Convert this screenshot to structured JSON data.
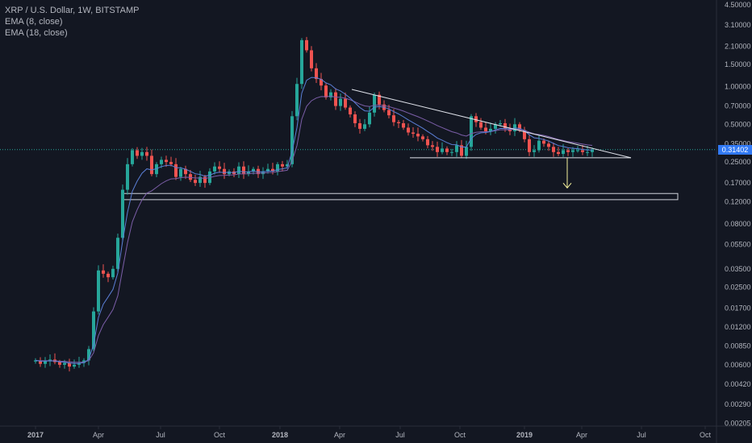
{
  "legend": {
    "title": "XRP / U.S. Dollar, 1W, BITSTAMP",
    "ema_fast": "EMA (8, close)",
    "ema_slow": "EMA (18, close)"
  },
  "last_price_label": "0.31402",
  "colors": {
    "background": "#131722",
    "up": "#26a69a",
    "down": "#ef5350",
    "ema_fast": "#5b7fd6",
    "ema_slow": "#7b5ea8",
    "price_line": "#26a69a",
    "axis_text": "#b2b5be",
    "arrow": "#f5f19c",
    "price_tag": "#3179f5"
  },
  "chart_data": {
    "type": "candlestick",
    "y_scale": "log",
    "ylim": [
      0.002,
      4.5
    ],
    "y_ticks": [
      "4.50000",
      "3.10000",
      "2.10000",
      "1.50000",
      "1.00000",
      "0.70000",
      "0.50000",
      "0.35000",
      "0.25000",
      "0.17000",
      "0.12000",
      "0.08000",
      "0.05500",
      "0.03500",
      "0.02500",
      "0.01700",
      "0.01200",
      "0.00850",
      "0.00600",
      "0.00420",
      "0.00290",
      "0.00205"
    ],
    "x_ticks": [
      "2017",
      "Apr",
      "Jul",
      "Oct",
      "2018",
      "Apr",
      "Jul",
      "Oct",
      "2019",
      "Apr",
      "Jul",
      "Oct"
    ],
    "last_price": 0.31402,
    "closes": [
      0.0065,
      0.0061,
      0.0064,
      0.0066,
      0.0063,
      0.006,
      0.0062,
      0.0058,
      0.006,
      0.0062,
      0.0065,
      0.008,
      0.016,
      0.034,
      0.032,
      0.03,
      0.035,
      0.062,
      0.15,
      0.24,
      0.31,
      0.28,
      0.3,
      0.28,
      0.2,
      0.24,
      0.26,
      0.25,
      0.24,
      0.19,
      0.22,
      0.2,
      0.18,
      0.17,
      0.19,
      0.17,
      0.21,
      0.23,
      0.22,
      0.2,
      0.21,
      0.2,
      0.23,
      0.2,
      0.21,
      0.22,
      0.2,
      0.21,
      0.22,
      0.21,
      0.24,
      0.23,
      0.24,
      0.58,
      1.05,
      2.35,
      1.95,
      1.4,
      1.15,
      1.02,
      0.82,
      0.9,
      0.7,
      0.8,
      0.68,
      0.6,
      0.51,
      0.46,
      0.5,
      0.62,
      0.86,
      0.72,
      0.65,
      0.59,
      0.52,
      0.51,
      0.47,
      0.43,
      0.42,
      0.4,
      0.38,
      0.34,
      0.33,
      0.3,
      0.32,
      0.3,
      0.3,
      0.34,
      0.28,
      0.33,
      0.58,
      0.52,
      0.47,
      0.44,
      0.46,
      0.5,
      0.51,
      0.46,
      0.44,
      0.5,
      0.45,
      0.38,
      0.3,
      0.31,
      0.37,
      0.35,
      0.33,
      0.3,
      0.29,
      0.31,
      0.3,
      0.31,
      0.31,
      0.3,
      0.3,
      0.314
    ],
    "series": [
      {
        "name": "EMA (8, close)"
      },
      {
        "name": "EMA (18, close)"
      }
    ],
    "annotations": {
      "descending_resistance": {
        "from_price": 0.95,
        "to_price": 0.27
      },
      "support": 0.27,
      "demand_zone": [
        0.125,
        0.14
      ],
      "arrow_target": 0.155
    }
  }
}
